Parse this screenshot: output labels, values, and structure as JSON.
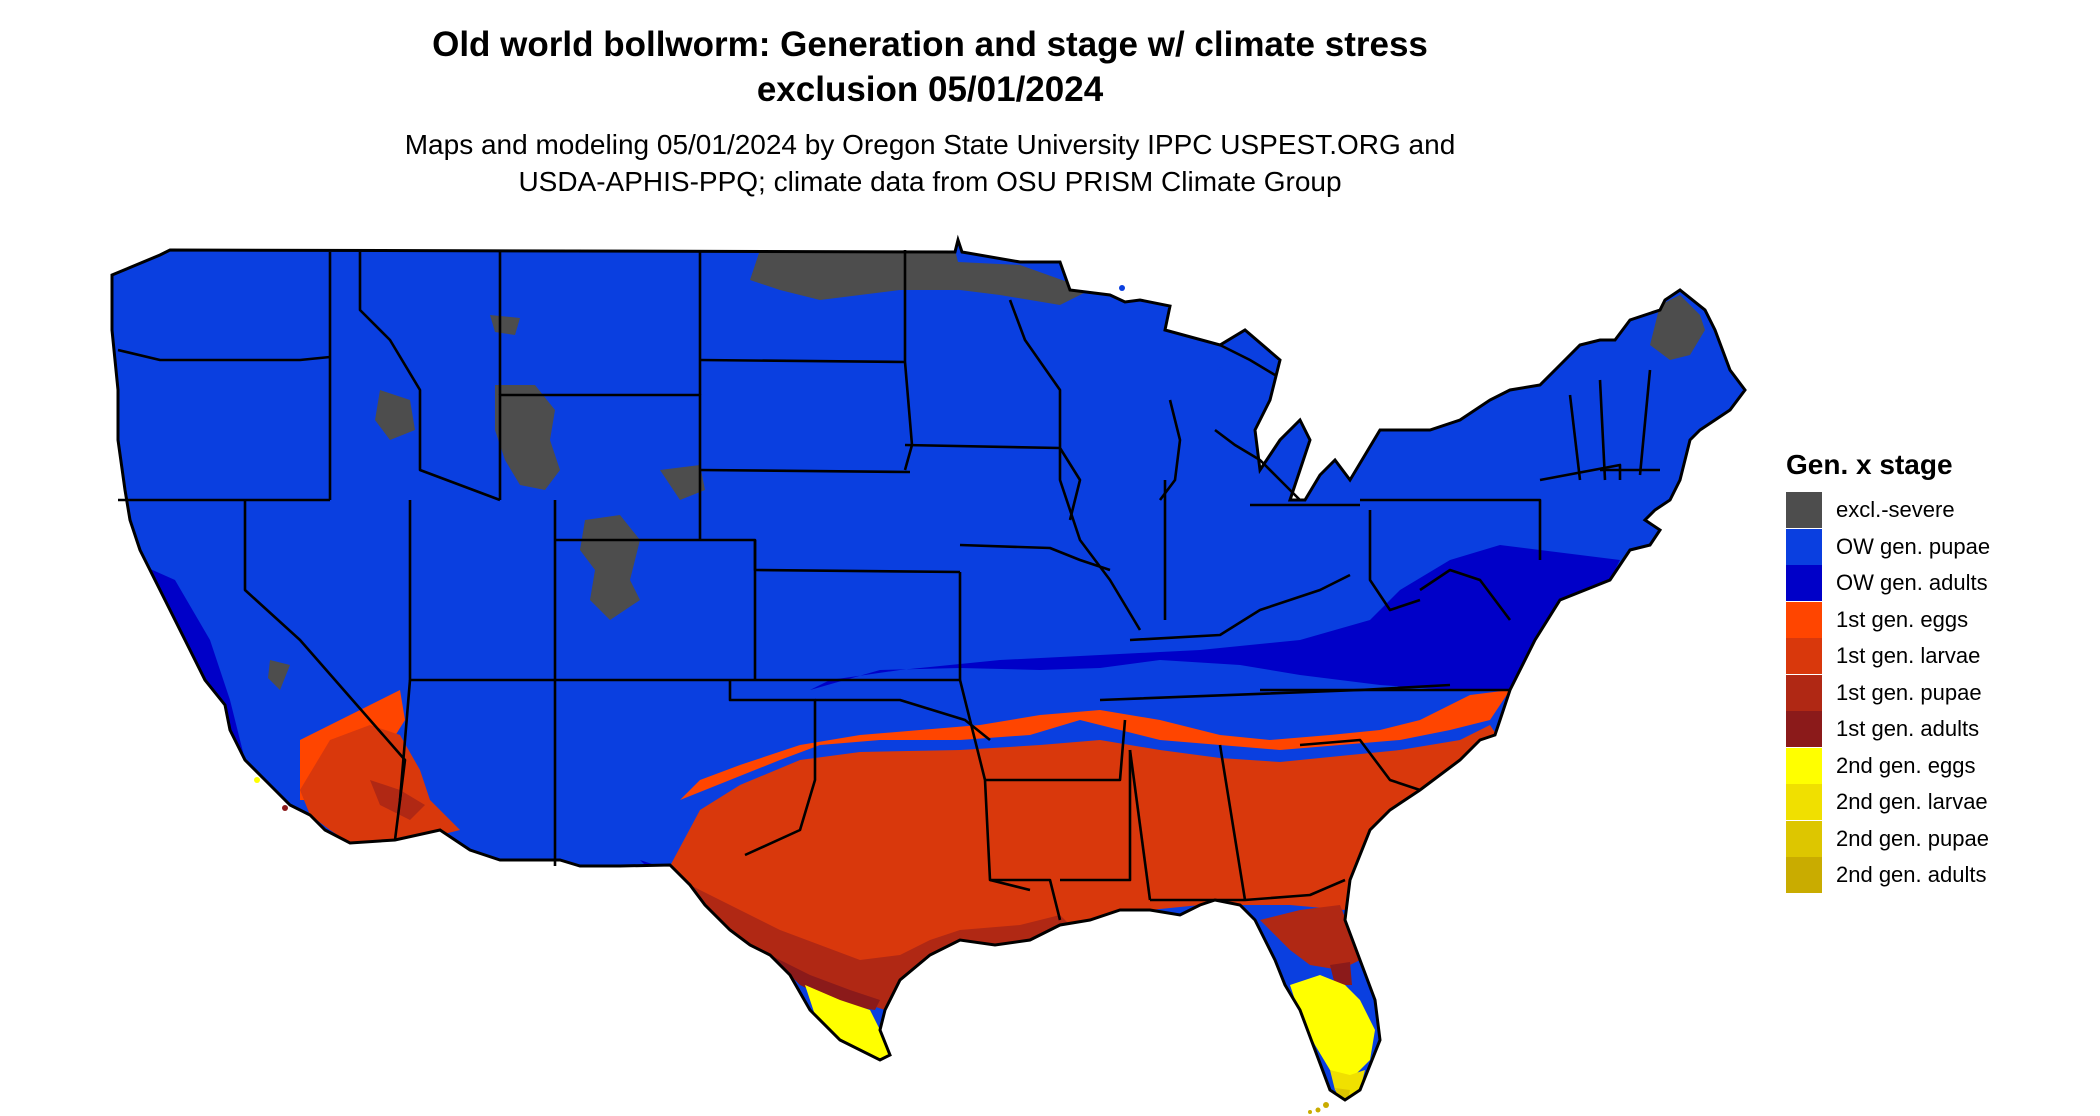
{
  "title_line1": "Old world bollworm: Generation and stage w/ climate stress",
  "title_line2": "exclusion 05/01/2024",
  "subtitle_line1": "Maps and modeling 05/01/2024 by Oregon State University IPPC USPEST.ORG and",
  "subtitle_line2": "USDA-APHIS-PPQ; climate data from OSU PRISM Climate Group",
  "legend": {
    "title": "Gen. x stage",
    "items": [
      {
        "label": "excl.-severe",
        "color": "#4d4d4d"
      },
      {
        "label": "OW gen. pupae",
        "color": "#0a3fe0"
      },
      {
        "label": "OW gen. adults",
        "color": "#0000c8"
      },
      {
        "label": "1st gen. eggs",
        "color": "#ff4500"
      },
      {
        "label": "1st gen. larvae",
        "color": "#d9380c"
      },
      {
        "label": "1st gen. pupae",
        "color": "#b02814"
      },
      {
        "label": "1st gen. adults",
        "color": "#8b1a1a"
      },
      {
        "label": "2nd gen. eggs",
        "color": "#ffff00"
      },
      {
        "label": "2nd gen. larvae",
        "color": "#f0e000"
      },
      {
        "label": "2nd gen. pupae",
        "color": "#ddc600"
      },
      {
        "label": "2nd gen. adults",
        "color": "#c9ac00"
      }
    ]
  }
}
